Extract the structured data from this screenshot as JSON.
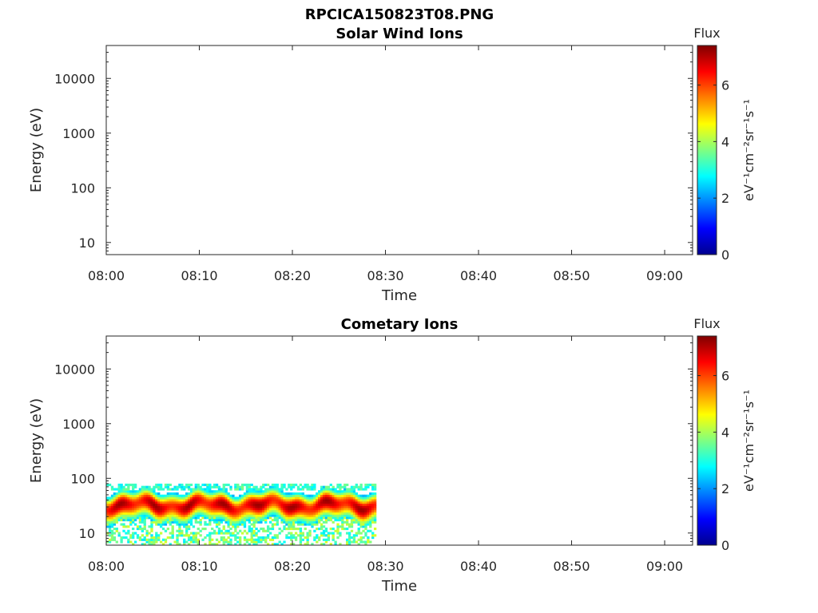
{
  "figure": {
    "title": "RPCICA150823T08.PNG"
  },
  "chart_data": [
    {
      "type": "heatmap",
      "title": "Solar Wind Ions",
      "xlabel": "Time",
      "ylabel": "Energy (eV)",
      "x_ticks": [
        "08:00",
        "08:10",
        "08:20",
        "08:30",
        "08:40",
        "08:50",
        "09:00"
      ],
      "xlim": [
        "08:00",
        "09:03"
      ],
      "y_ticks": [
        10,
        100,
        1000,
        10000
      ],
      "y_tick_labels": [
        "10",
        "100",
        "1000",
        "10000"
      ],
      "ylim": [
        6,
        40000
      ],
      "y_scale": "log",
      "colorbar": {
        "title": "Flux",
        "label": "eV⁻¹cm⁻²sr⁻¹s⁻¹",
        "ticks": [
          0,
          2,
          4,
          6
        ],
        "range": [
          0,
          7.4
        ],
        "colormap": "jet"
      },
      "data": []
    },
    {
      "type": "heatmap",
      "title": "Cometary Ions",
      "xlabel": "Time",
      "ylabel": "Energy (eV)",
      "x_ticks": [
        "08:00",
        "08:10",
        "08:20",
        "08:30",
        "08:40",
        "08:50",
        "09:00"
      ],
      "xlim": [
        "08:00",
        "09:03"
      ],
      "y_ticks": [
        10,
        100,
        1000,
        10000
      ],
      "y_tick_labels": [
        "10",
        "100",
        "1000",
        "10000"
      ],
      "ylim": [
        6,
        40000
      ],
      "y_scale": "log",
      "colorbar": {
        "title": "Flux",
        "label": "eV⁻¹cm⁻²sr⁻¹s⁻¹",
        "ticks": [
          0,
          2,
          4,
          6
        ],
        "range": [
          0,
          7.4
        ],
        "colormap": "jet"
      },
      "data_time_range": [
        "08:00",
        "08:29"
      ],
      "data_energy_range_eV": [
        6,
        80
      ],
      "peak_flux_energy_eV": 33,
      "peak_flux": 7.2
    }
  ]
}
